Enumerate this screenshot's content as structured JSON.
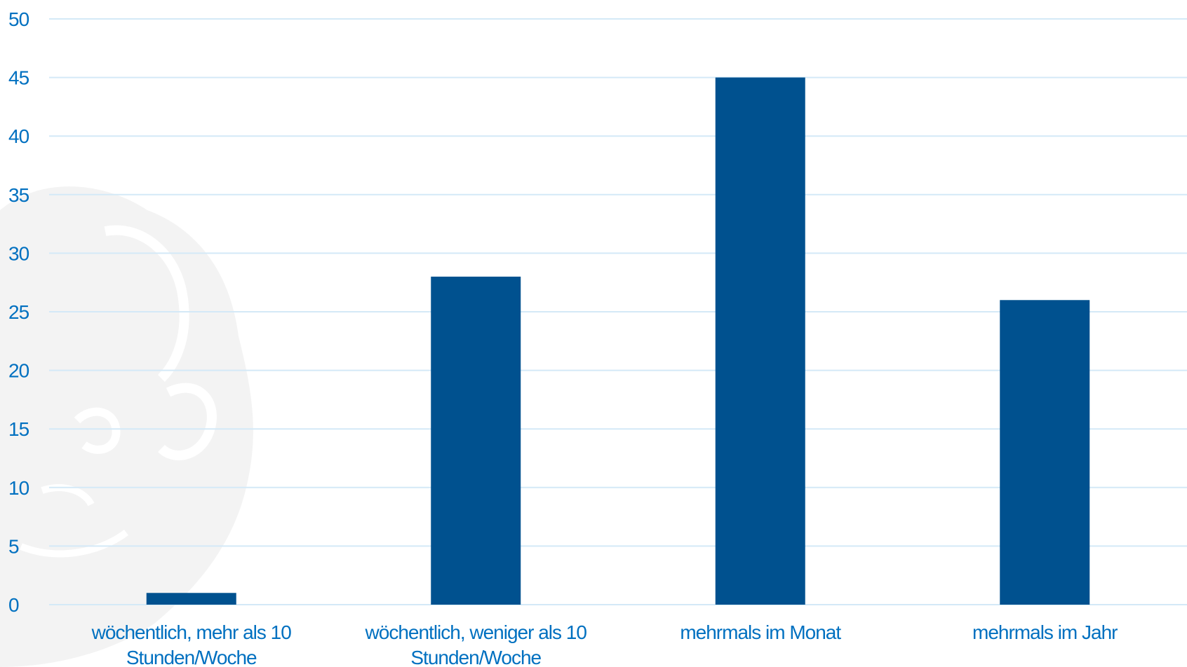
{
  "chart_data": {
    "type": "bar",
    "categories": [
      [
        "wöchentlich, mehr als 10",
        "Stunden/Woche"
      ],
      [
        "wöchentlich, weniger als 10",
        "Stunden/Woche"
      ],
      [
        "mehrmals im Monat"
      ],
      [
        "mehrmals im Jahr"
      ]
    ],
    "values": [
      1,
      28,
      45,
      26
    ],
    "ylim": [
      0,
      50
    ],
    "yticks": [
      0,
      5,
      10,
      15,
      20,
      25,
      30,
      35,
      40,
      45,
      50
    ],
    "grid": true,
    "legend": "none",
    "title": "",
    "xlabel": "",
    "ylabel": "",
    "colors": {
      "bar": "#00518F",
      "tick_text": "#0070C0",
      "grid": "#D4E9F7",
      "watermark": "#F2F2F2"
    }
  }
}
